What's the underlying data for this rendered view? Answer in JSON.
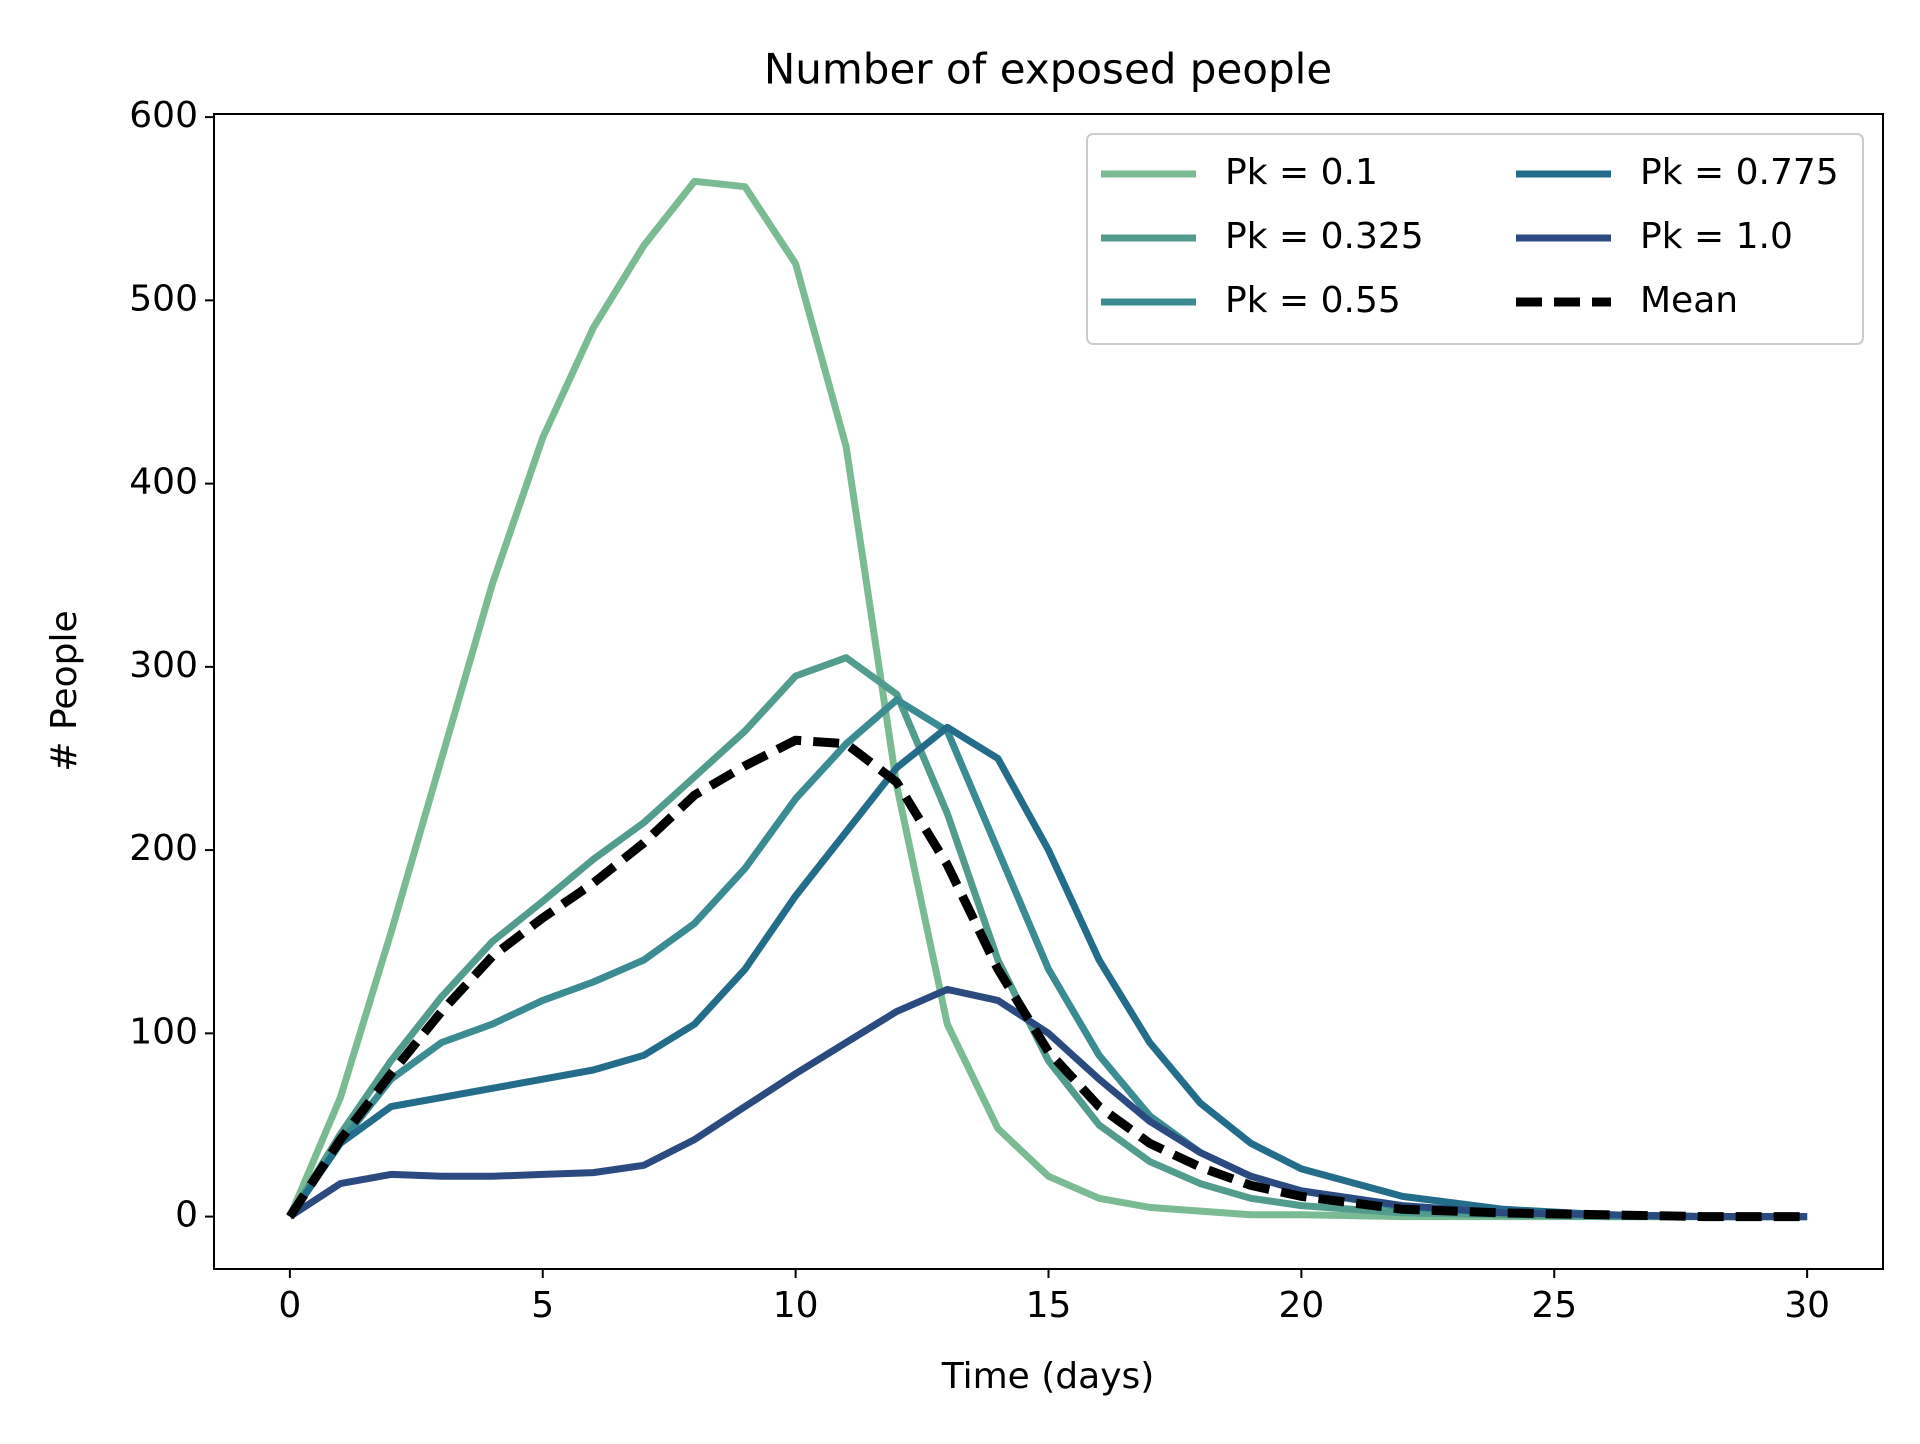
{
  "chart_data": {
    "type": "line",
    "title": "Number of exposed people",
    "x_label": "Time (days)",
    "y_label": "# People",
    "x": [
      0,
      1,
      2,
      3,
      4,
      5,
      6,
      7,
      8,
      9,
      10,
      11,
      12,
      13,
      14,
      15,
      16,
      17,
      18,
      19,
      20,
      22,
      24,
      26,
      28,
      30
    ],
    "series": [
      {
        "name": "Pk = 0.1",
        "color": "#7bbb93",
        "values": [
          0,
          65,
          155,
          250,
          345,
          425,
          485,
          530,
          565,
          562,
          520,
          420,
          235,
          105,
          48,
          22,
          10,
          5,
          3,
          1,
          1,
          0,
          0,
          0,
          0,
          0
        ]
      },
      {
        "name": "Pk = 0.325",
        "color": "#529c8e",
        "values": [
          0,
          45,
          85,
          120,
          150,
          172,
          195,
          215,
          240,
          265,
          295,
          305,
          285,
          220,
          140,
          85,
          50,
          30,
          18,
          10,
          6,
          2,
          1,
          0,
          0,
          0
        ]
      },
      {
        "name": "Pk = 0.55",
        "color": "#3a8b92",
        "values": [
          0,
          40,
          75,
          95,
          105,
          118,
          128,
          140,
          160,
          190,
          228,
          258,
          282,
          265,
          200,
          135,
          88,
          55,
          35,
          22,
          14,
          5,
          2,
          1,
          0,
          0
        ]
      },
      {
        "name": "Pk = 0.775",
        "color": "#236d8a",
        "values": [
          0,
          40,
          60,
          65,
          70,
          75,
          80,
          88,
          105,
          135,
          175,
          210,
          245,
          267,
          250,
          200,
          140,
          95,
          62,
          40,
          26,
          11,
          4,
          1,
          0,
          0
        ]
      },
      {
        "name": "Pk = 1.0",
        "color": "#2b4a7f",
        "values": [
          0,
          18,
          23,
          22,
          22,
          23,
          24,
          28,
          42,
          60,
          78,
          95,
          112,
          124,
          118,
          100,
          75,
          52,
          35,
          22,
          14,
          6,
          2,
          1,
          0,
          0
        ]
      },
      {
        "name": "Mean",
        "color": "#000000",
        "dashed": true,
        "values": [
          0,
          42,
          78,
          112,
          142,
          163,
          182,
          204,
          230,
          246,
          260,
          258,
          237,
          192,
          135,
          90,
          60,
          40,
          27,
          17,
          11,
          4,
          2,
          1,
          0,
          0
        ]
      }
    ],
    "xlim": [
      -1.5,
      31.5
    ],
    "xticks": [
      0,
      5,
      10,
      15,
      20,
      25,
      30
    ],
    "ylim": [
      -28.6,
      601.7
    ],
    "yticks": [
      0,
      100,
      200,
      300,
      400,
      500,
      600
    ],
    "grid": false,
    "legend": "upper right",
    "legend_columns": 2
  }
}
